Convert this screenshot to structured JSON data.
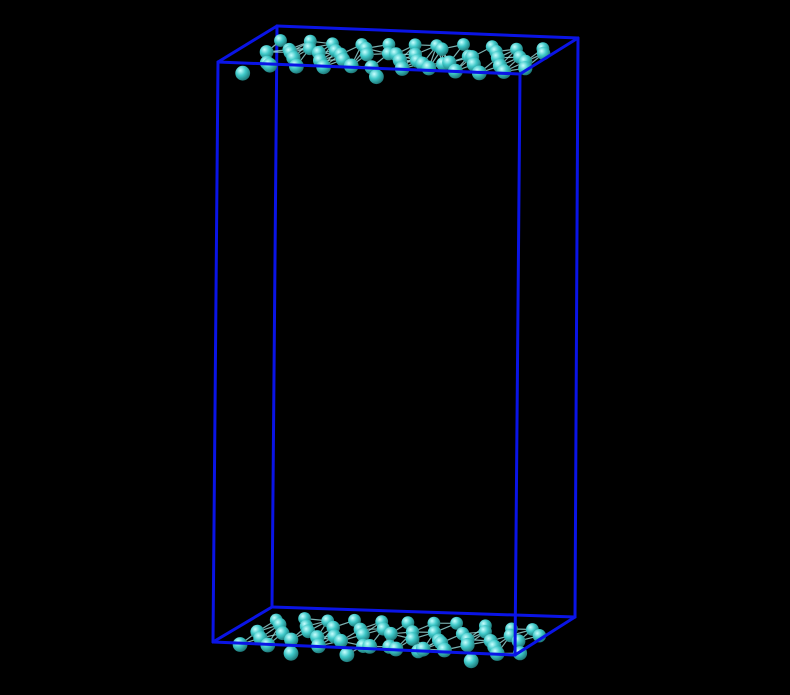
{
  "scene": {
    "background_color": "#000000",
    "box_color": "#0a14e6",
    "atom_color": "#3fc9c9",
    "atom_highlight_color": "#c8ffff",
    "atom_shadow_color": "#1a6e6e",
    "bond_color": "#9adede",
    "layers": [
      {
        "name": "top-atom-layer"
      },
      {
        "name": "bottom-atom-layer"
      }
    ]
  }
}
